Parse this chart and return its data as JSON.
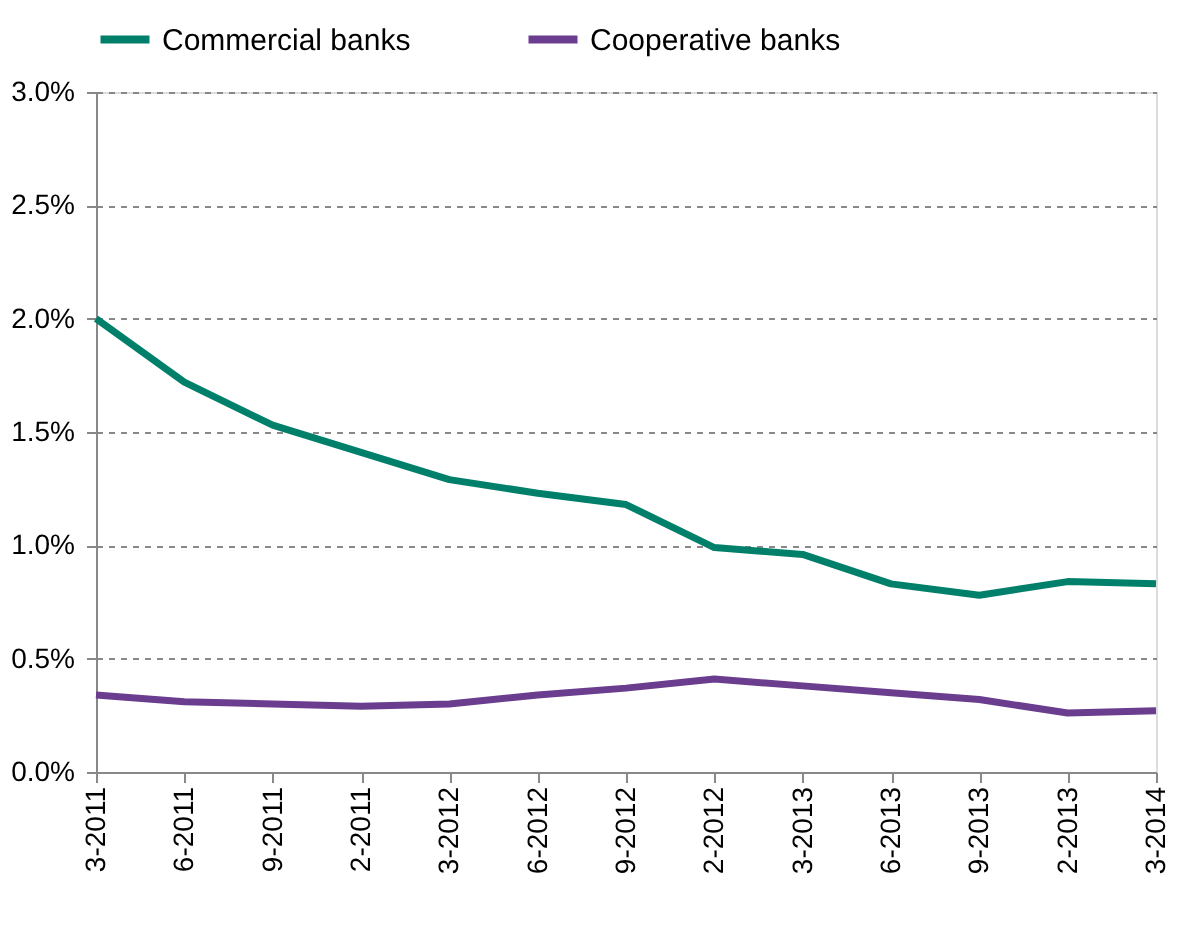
{
  "chart_data": {
    "type": "line",
    "categories": [
      "3-2011",
      "6-2011",
      "9-2011",
      "2-2011",
      "3-2012",
      "6-2012",
      "9-2012",
      "2-2012",
      "3-2013",
      "6-2013",
      "9-2013",
      "2-2013",
      "3-2014"
    ],
    "series": [
      {
        "name": "Commercial banks",
        "color": "#00806a",
        "values": [
          2.0,
          1.72,
          1.53,
          1.41,
          1.29,
          1.23,
          1.18,
          0.99,
          0.96,
          0.83,
          0.78,
          0.84,
          0.83
        ]
      },
      {
        "name": "Cooperative banks",
        "color": "#6a3d8f",
        "values": [
          0.34,
          0.31,
          0.3,
          0.29,
          0.3,
          0.34,
          0.37,
          0.41,
          0.38,
          0.35,
          0.32,
          0.26,
          0.27
        ]
      }
    ],
    "ylim": [
      0,
      3.0
    ],
    "yticks": [
      {
        "value": 0,
        "label": "0.0%"
      },
      {
        "value": 0.5,
        "label": "0.5%"
      },
      {
        "value": 1.0,
        "label": "1.0%"
      },
      {
        "value": 1.5,
        "label": "1.5%"
      },
      {
        "value": 2.0,
        "label": "2.0%"
      },
      {
        "value": 2.5,
        "label": "2.5%"
      },
      {
        "value": 3.0,
        "label": "3.0%"
      }
    ],
    "grid": "y",
    "legend": "top",
    "marker": "none",
    "line_style": "solid"
  }
}
